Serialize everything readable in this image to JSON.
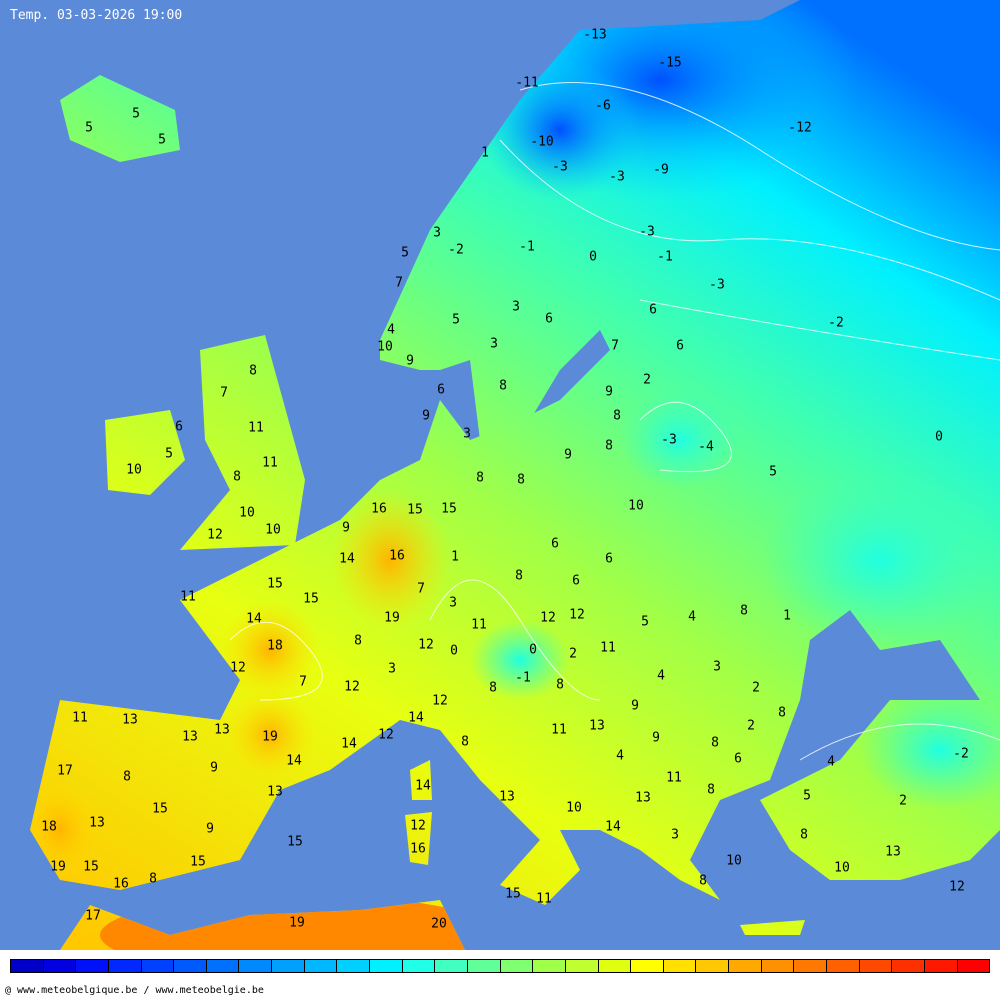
{
  "title": "Temp. 03-03-2026 19:00",
  "footer": "@ www.meteobelgique.be / www.meteobelgie.be",
  "colors": {
    "sea": "#5b8ad9",
    "isotherm": "#ffffff",
    "colorbar": [
      "#0000c8",
      "#0000e0",
      "#0010f8",
      "#0028ff",
      "#0040ff",
      "#0058ff",
      "#0070ff",
      "#0088ff",
      "#00a0ff",
      "#00b8ff",
      "#00d0ff",
      "#00f0ff",
      "#20ffe8",
      "#40ffc0",
      "#60ff98",
      "#80ff70",
      "#a0ff48",
      "#c0ff30",
      "#e0ff10",
      "#ffff00",
      "#ffe000",
      "#ffc800",
      "#ffa800",
      "#ff9000",
      "#ff7800",
      "#ff6000",
      "#ff4800",
      "#ff3000",
      "#ff1800",
      "#ff0000"
    ]
  },
  "temperature_labels": [
    "-13",
    "-15",
    "-11",
    "-6",
    "-12",
    "-10",
    "1",
    "-3",
    "-3",
    "-9",
    "3",
    "-2",
    "-1",
    "-3",
    "0",
    "-1",
    "-3",
    "5",
    "7",
    "3",
    "5",
    "6",
    "6",
    "-2",
    "4",
    "10",
    "9",
    "3",
    "7",
    "6",
    "2",
    "6",
    "8",
    "9",
    "8",
    "9",
    "3",
    "8",
    "-3",
    "-4",
    "0",
    "9",
    "8",
    "8",
    "5",
    "5",
    "5",
    "5",
    "8",
    "7",
    "6",
    "11",
    "5",
    "11",
    "10",
    "8",
    "10",
    "10",
    "12",
    "16",
    "15",
    "15",
    "10",
    "9",
    "14",
    "16",
    "1",
    "6",
    "6",
    "15",
    "15",
    "7",
    "8",
    "6",
    "11",
    "3",
    "14",
    "18",
    "19",
    "11",
    "12",
    "12",
    "5",
    "4",
    "8",
    "1",
    "8",
    "12",
    "0",
    "0",
    "2",
    "11",
    "12",
    "3",
    "3",
    "4",
    "7",
    "12",
    "-1",
    "8",
    "8",
    "2",
    "12",
    "9",
    "8",
    "11",
    "13",
    "13",
    "13",
    "19",
    "14",
    "11",
    "13",
    "2",
    "14",
    "12",
    "9",
    "8",
    "-2",
    "14",
    "8",
    "4",
    "6",
    "4",
    "17",
    "8",
    "9",
    "11",
    "14",
    "13",
    "8",
    "5",
    "2",
    "15",
    "13",
    "10",
    "13",
    "18",
    "13",
    "9",
    "12",
    "14",
    "3",
    "8",
    "15",
    "16",
    "13",
    "19",
    "15",
    "15",
    "10",
    "10",
    "16",
    "8",
    "15",
    "11",
    "8",
    "12",
    "17",
    "19",
    "20"
  ]
}
